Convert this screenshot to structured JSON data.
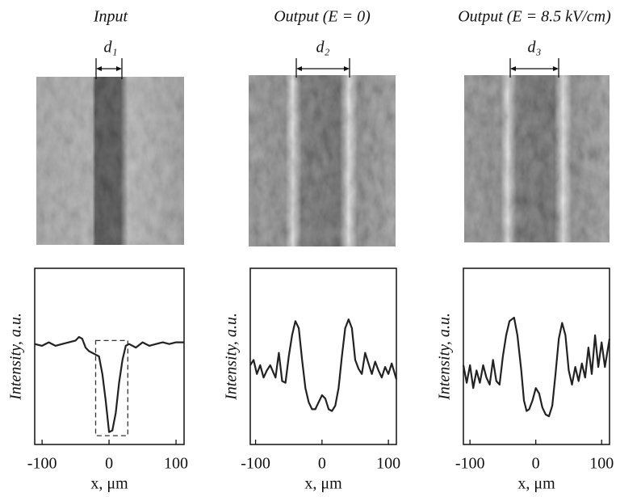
{
  "chart_data": [
    {
      "type": "line",
      "title": "Input",
      "annotation": "d₁",
      "x_label": "x, μm",
      "y_label": "Intensity, a.u.",
      "xlim": [
        -111,
        112
      ],
      "ylim": [
        0,
        100
      ],
      "xticks": [
        -100,
        0,
        100
      ],
      "color": "#222",
      "highlight_x": [
        -20,
        28
      ],
      "highlight_y": [
        5,
        59
      ],
      "x": [
        -111,
        -100,
        -90,
        -80,
        -70,
        -60,
        -50,
        -45,
        -40,
        -35,
        -30,
        -25,
        -20,
        -15,
        -10,
        -5,
        0,
        5,
        10,
        15,
        20,
        25,
        30,
        40,
        50,
        60,
        70,
        80,
        90,
        100,
        112
      ],
      "values": [
        57,
        56,
        58,
        56,
        57,
        58,
        59,
        61,
        60,
        55,
        53,
        52,
        51,
        50,
        40,
        25,
        7,
        8,
        18,
        35,
        48,
        56,
        57,
        55,
        58,
        56,
        57,
        58,
        57,
        58,
        58
      ]
    },
    {
      "type": "line",
      "title": "Output (E = 0)",
      "annotation": "d₂",
      "x_label": "x, μm",
      "y_label": "Intensity, a.u.",
      "xlim": [
        -108,
        112
      ],
      "ylim": [
        0,
        100
      ],
      "xticks": [
        -100,
        0,
        100
      ],
      "color": "#222",
      "x": [
        -108,
        -103,
        -98,
        -93,
        -88,
        -83,
        -78,
        -70,
        -65,
        -60,
        -55,
        -50,
        -45,
        -40,
        -35,
        -30,
        -25,
        -20,
        -15,
        -10,
        -5,
        0,
        5,
        10,
        15,
        20,
        25,
        30,
        35,
        40,
        45,
        50,
        55,
        60,
        65,
        70,
        75,
        80,
        85,
        90,
        95,
        100,
        105,
        112
      ],
      "values": [
        45,
        48,
        40,
        45,
        38,
        42,
        45,
        38,
        52,
        36,
        35,
        50,
        62,
        70,
        66,
        48,
        32,
        24,
        20,
        20,
        24,
        28,
        26,
        20,
        19,
        22,
        32,
        50,
        66,
        71,
        66,
        48,
        43,
        40,
        52,
        46,
        40,
        47,
        42,
        38,
        44,
        40,
        46,
        37
      ]
    },
    {
      "type": "line",
      "title": "Output (E = 8.5 kV/cm)",
      "annotation": "d₃",
      "x_label": "x, μm",
      "y_label": "Intensity, a.u.",
      "xlim": [
        -110,
        112
      ],
      "ylim": [
        0,
        100
      ],
      "xticks": [
        -100,
        0,
        100
      ],
      "color": "#222",
      "x": [
        -110,
        -105,
        -100,
        -95,
        -90,
        -85,
        -80,
        -75,
        -70,
        -65,
        -60,
        -55,
        -50,
        -45,
        -40,
        -33,
        -28,
        -22,
        -18,
        -14,
        -10,
        -5,
        0,
        5,
        10,
        15,
        20,
        25,
        30,
        35,
        40,
        45,
        50,
        55,
        60,
        65,
        70,
        75,
        80,
        85,
        90,
        95,
        100,
        105,
        112
      ],
      "values": [
        45,
        35,
        45,
        32,
        42,
        35,
        45,
        38,
        34,
        48,
        36,
        34,
        50,
        62,
        70,
        72,
        62,
        42,
        25,
        19,
        20,
        25,
        32,
        29,
        21,
        17,
        16,
        22,
        40,
        60,
        69,
        62,
        42,
        34,
        44,
        36,
        46,
        38,
        55,
        40,
        62,
        44,
        58,
        44,
        60
      ]
    }
  ]
}
